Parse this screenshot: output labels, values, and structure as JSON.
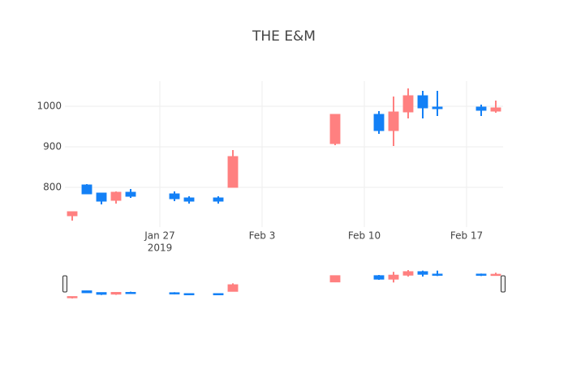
{
  "chart_data": {
    "type": "candlestick",
    "title": "THE E&M",
    "x": [
      "2019-01-21",
      "2019-01-22",
      "2019-01-23",
      "2019-01-24",
      "2019-01-25",
      "2019-01-28",
      "2019-01-29",
      "2019-01-31",
      "2019-02-01",
      "2019-02-08",
      "2019-02-11",
      "2019-02-12",
      "2019-02-13",
      "2019-02-14",
      "2019-02-15",
      "2019-02-18",
      "2019-02-19"
    ],
    "open": [
      740,
      784,
      766,
      788,
      778,
      772,
      766,
      766,
      876,
      980,
      940,
      986,
      1026,
      996,
      994,
      990,
      996
    ],
    "high": [
      740,
      808,
      786,
      790,
      796,
      790,
      778,
      778,
      892,
      980,
      988,
      1024,
      1044,
      1038,
      1038,
      1004,
      1014
    ],
    "low": [
      718,
      784,
      758,
      760,
      774,
      766,
      760,
      760,
      800,
      904,
      932,
      902,
      970,
      970,
      976,
      976,
      984
    ],
    "close": [
      730,
      806,
      786,
      768,
      788,
      784,
      774,
      774,
      800,
      908,
      980,
      940,
      986,
      1026,
      998,
      998,
      988
    ],
    "increasing_color": "#1380f6",
    "decreasing_color": "#ff8080",
    "xlim": [
      "2019-01-20T12:00",
      "2019-02-19T12:00"
    ],
    "xticks": [
      {
        "value": "2019-01-27",
        "label": "Jan 27"
      },
      {
        "value": "2019-02-03",
        "label": "Feb 3"
      },
      {
        "value": "2019-02-10",
        "label": "Feb 10"
      },
      {
        "value": "2019-02-17",
        "label": "Feb 17"
      }
    ],
    "x_year_label": "2019",
    "ylim": [
      702,
      1062
    ],
    "yticks": [
      800,
      900,
      1000
    ],
    "grid": true,
    "rangeslider": true
  }
}
